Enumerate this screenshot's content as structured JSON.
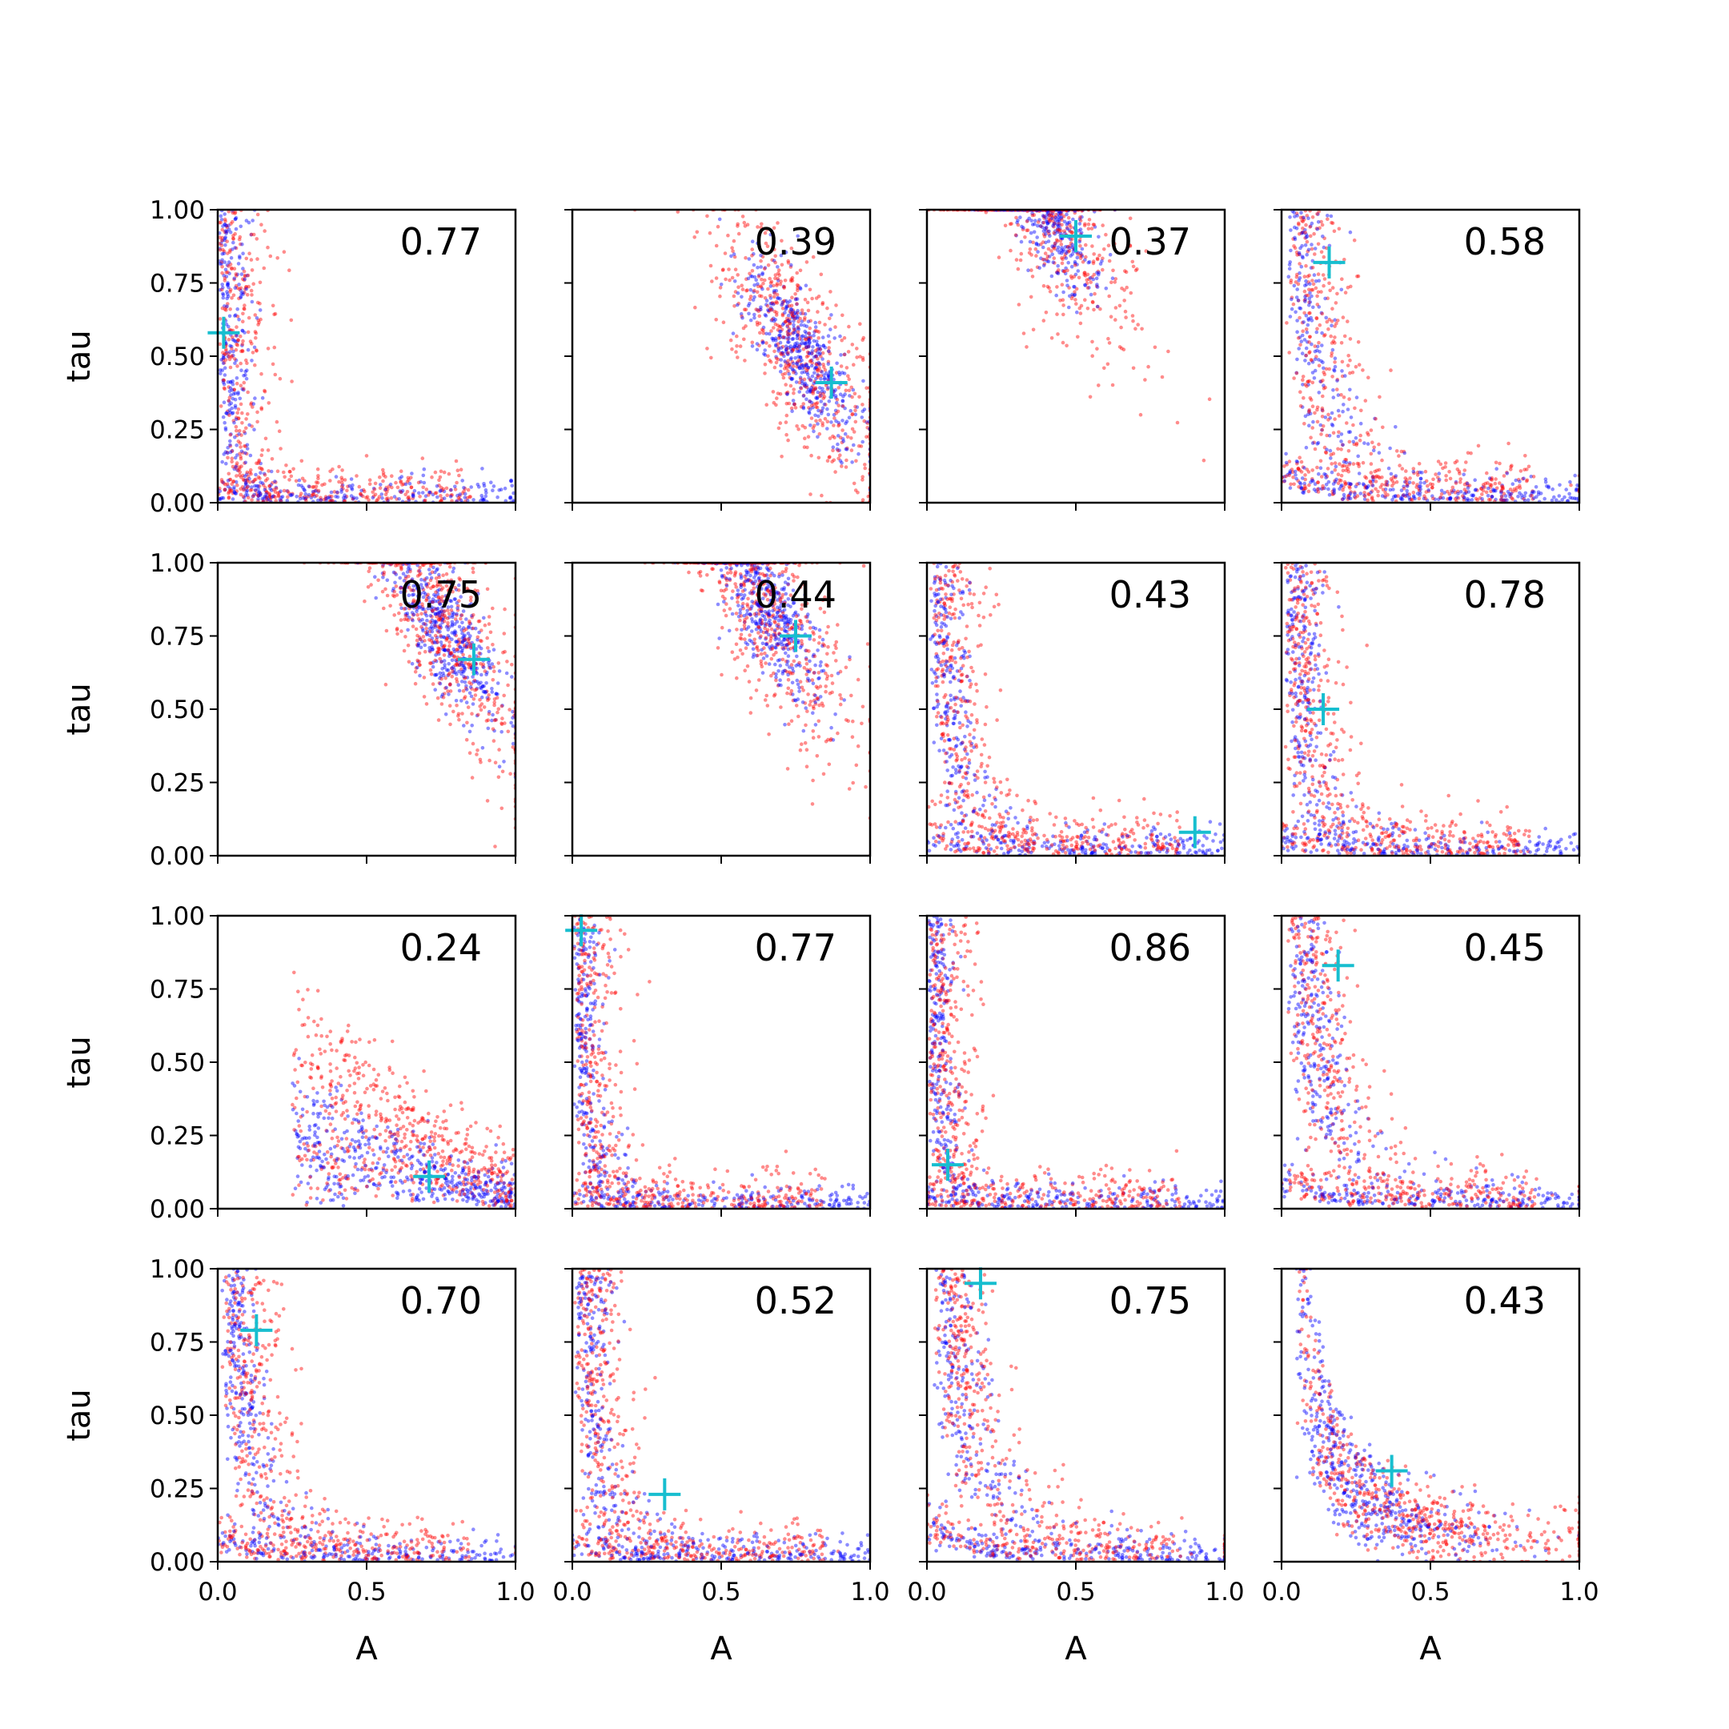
{
  "chart_data": {
    "type": "scatter",
    "grid": false,
    "rows": 4,
    "cols": 4,
    "xlabel": "A",
    "ylabel": "tau",
    "xlim": [
      0,
      1
    ],
    "ylim": [
      0,
      1
    ],
    "x_ticks": [
      "0.0",
      "0.5",
      "1.0"
    ],
    "y_ticks": [
      "0.00",
      "0.25",
      "0.50",
      "0.75",
      "1.00"
    ],
    "colors": {
      "series_a": "#0000ff",
      "series_b": "#ff0000",
      "marker": "#17becf"
    },
    "panels": [
      {
        "label": "0.77",
        "true_point": [
          0.02,
          0.58
        ]
      },
      {
        "label": "0.39",
        "true_point": [
          0.87,
          0.41
        ]
      },
      {
        "label": "0.37",
        "true_point": [
          0.5,
          0.91
        ]
      },
      {
        "label": "0.58",
        "true_point": [
          0.16,
          0.82
        ]
      },
      {
        "label": "0.75",
        "true_point": [
          0.86,
          0.67
        ]
      },
      {
        "label": "0.44",
        "true_point": [
          0.75,
          0.75
        ]
      },
      {
        "label": "0.43",
        "true_point": [
          0.9,
          0.08
        ]
      },
      {
        "label": "0.78",
        "true_point": [
          0.14,
          0.5
        ]
      },
      {
        "label": "0.24",
        "true_point": [
          0.71,
          0.11
        ]
      },
      {
        "label": "0.77",
        "true_point": [
          0.03,
          0.95
        ]
      },
      {
        "label": "0.86",
        "true_point": [
          0.07,
          0.15
        ]
      },
      {
        "label": "0.45",
        "true_point": [
          0.19,
          0.83
        ]
      },
      {
        "label": "0.70",
        "true_point": [
          0.13,
          0.79
        ]
      },
      {
        "label": "0.52",
        "true_point": [
          0.31,
          0.23
        ]
      },
      {
        "label": "0.75",
        "true_point": [
          0.18,
          0.95
        ]
      },
      {
        "label": "0.43",
        "true_point": [
          0.37,
          0.31
        ]
      }
    ]
  }
}
